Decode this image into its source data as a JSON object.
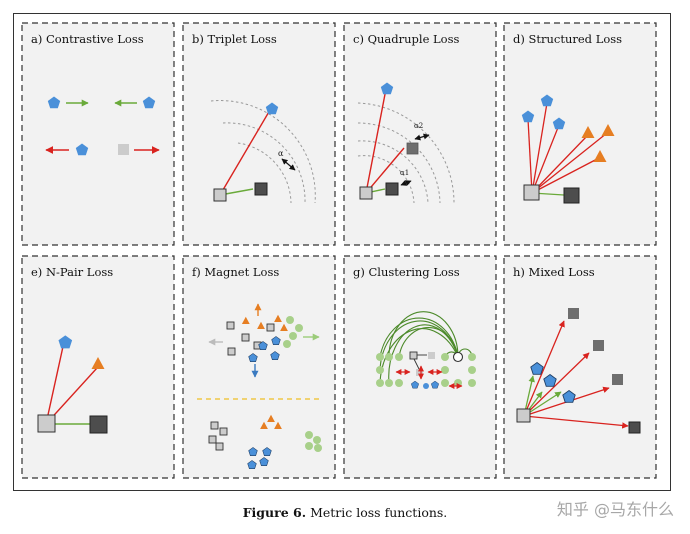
{
  "panels": [
    {
      "id": "a",
      "title": "a) Contrastive Loss"
    },
    {
      "id": "b",
      "title": "b) Triplet Loss"
    },
    {
      "id": "c",
      "title": "c) Quadruple Loss"
    },
    {
      "id": "d",
      "title": "d) Structured Loss"
    },
    {
      "id": "e",
      "title": "e) N-Pair Loss"
    },
    {
      "id": "f",
      "title": "f) Magnet Loss"
    },
    {
      "id": "g",
      "title": "g) Clustering Loss"
    },
    {
      "id": "h",
      "title": "h) Mixed Loss"
    }
  ],
  "annotations": {
    "alpha": "α",
    "alpha1": "α1",
    "alpha2": "α2"
  },
  "caption": {
    "label": "Figure 6.",
    "text": "Metric loss functions."
  },
  "watermark": "知乎 @马东什么",
  "colors": {
    "blue": "#4a90d9",
    "orange": "#e67e22",
    "green": "#6aaa3a",
    "red": "#d9231f",
    "gray_light": "#cccccc",
    "gray_dark": "#4d4d4d",
    "panel_bg": "#f2f2f2"
  }
}
